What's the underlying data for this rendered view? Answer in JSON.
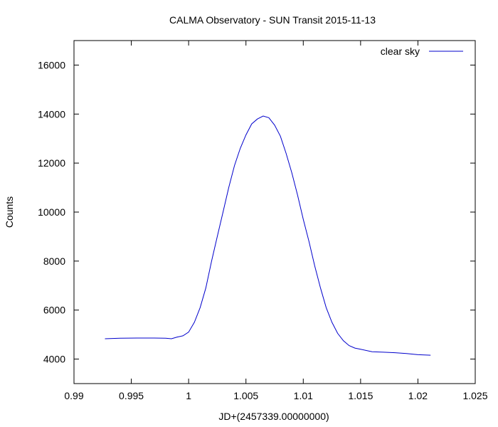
{
  "chart_data": {
    "type": "line",
    "title": "CALMA Observatory - SUN Transit 2015-11-13",
    "xlabel": "JD+(2457339.00000000)",
    "ylabel": "Counts",
    "xlim": [
      0.99,
      1.025
    ],
    "ylim": [
      3000,
      17000
    ],
    "xticks": [
      0.99,
      0.995,
      1.0,
      1.005,
      1.01,
      1.015,
      1.02,
      1.025
    ],
    "xtick_labels": [
      "0.99",
      "0.995",
      "1",
      "1.005",
      "1.01",
      "1.015",
      "1.02",
      "1.025"
    ],
    "yticks": [
      4000,
      6000,
      8000,
      10000,
      12000,
      14000,
      16000
    ],
    "ytick_labels": [
      "4000",
      "6000",
      "8000",
      "10000",
      "12000",
      "14000",
      "16000"
    ],
    "grid": false,
    "legend_position": "top-right",
    "series": [
      {
        "name": "clear sky",
        "color": "#0000cc",
        "x": [
          0.9927,
          0.994,
          0.9955,
          0.997,
          0.998,
          0.9985,
          0.999,
          0.9995,
          1.0,
          1.0005,
          1.001,
          1.0015,
          1.002,
          1.0025,
          1.003,
          1.0035,
          1.004,
          1.0045,
          1.005,
          1.0055,
          1.006,
          1.0065,
          1.007,
          1.0075,
          1.008,
          1.0085,
          1.009,
          1.0095,
          1.01,
          1.0105,
          1.011,
          1.0115,
          1.012,
          1.0125,
          1.013,
          1.0135,
          1.014,
          1.0145,
          1.015,
          1.016,
          1.017,
          1.018,
          1.019,
          1.02,
          1.0211
        ],
        "y": [
          4830,
          4850,
          4860,
          4860,
          4850,
          4830,
          4900,
          4950,
          5100,
          5500,
          6100,
          6900,
          8000,
          9000,
          10000,
          11000,
          11900,
          12600,
          13150,
          13600,
          13800,
          13920,
          13850,
          13550,
          13100,
          12400,
          11600,
          10700,
          9700,
          8800,
          7800,
          6900,
          6100,
          5500,
          5050,
          4750,
          4550,
          4450,
          4400,
          4300,
          4280,
          4260,
          4230,
          4180,
          4160
        ]
      }
    ]
  }
}
